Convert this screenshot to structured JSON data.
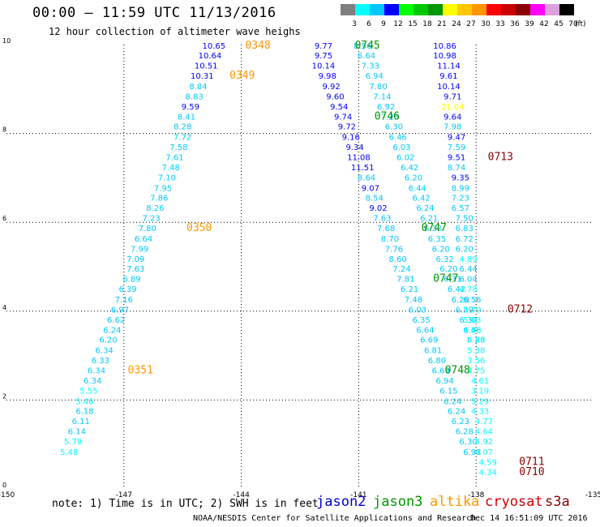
{
  "header": {
    "title": "00:00 – 11:59 UTC 11/13/2016",
    "subtitle": "12 hour collection of altimeter wave heighs"
  },
  "colorbar": {
    "bins": [
      {
        "label": "3",
        "color": "#7f7f7f"
      },
      {
        "label": "6",
        "color": "#00ffff"
      },
      {
        "label": "9",
        "color": "#00c8ff"
      },
      {
        "label": "12",
        "color": "#0000ff"
      },
      {
        "label": "15",
        "color": "#00ff00"
      },
      {
        "label": "18",
        "color": "#00c800"
      },
      {
        "label": "21",
        "color": "#009600"
      },
      {
        "label": "24",
        "color": "#ffff00"
      },
      {
        "label": "27",
        "color": "#ffc800"
      },
      {
        "label": "30",
        "color": "#ff9600"
      },
      {
        "label": "33",
        "color": "#ff0000"
      },
      {
        "label": "36",
        "color": "#c80000"
      },
      {
        "label": "39",
        "color": "#8b0000"
      },
      {
        "label": "42",
        "color": "#ff00ff"
      },
      {
        "label": "45",
        "color": "#dca0dc"
      },
      {
        "label": "70",
        "color": "#000000"
      }
    ],
    "unit": "(ft)"
  },
  "footer": {
    "note": "note: 1) Time is in UTC; 2) SWH is in feet",
    "credit": "NOAA/NESDIS Center for Satellite Applications and Research",
    "timestamp": "Dec 14 16:51:09 UTC 2016"
  },
  "satellites": [
    {
      "name": "jason2",
      "color": "#0000cc"
    },
    {
      "name": "jason3",
      "color": "#009600"
    },
    {
      "name": "altika",
      "color": "#ff9600"
    },
    {
      "name": "cryosat",
      "color": "#cc0000"
    },
    {
      "name": "s3a",
      "color": "#8b0000"
    }
  ],
  "chart_data": {
    "type": "scatter",
    "xlim": [
      -150,
      -135
    ],
    "ylim": [
      0,
      10
    ],
    "x_ticks": [
      "-150",
      "-147",
      "-144",
      "-141",
      "-138",
      "-135"
    ],
    "y_ticks": [
      "0",
      "2",
      "4",
      "6",
      "8",
      "10"
    ],
    "grid": true,
    "series": [
      {
        "name": "altika",
        "points": [
          {
            "x": -144.7,
            "y": 9.91,
            "v": "10.65"
          },
          {
            "x": -144.8,
            "y": 9.69,
            "v": "10.64"
          },
          {
            "x": -144.9,
            "y": 9.46,
            "v": "10.51"
          },
          {
            "x": -145.0,
            "y": 9.23,
            "v": "10.31"
          },
          {
            "x": -145.1,
            "y": 9.0,
            "v": "8.84"
          },
          {
            "x": -145.2,
            "y": 8.77,
            "v": "8.83"
          },
          {
            "x": -145.3,
            "y": 8.54,
            "v": "9.59"
          },
          {
            "x": -145.4,
            "y": 8.31,
            "v": "8.41"
          },
          {
            "x": -145.5,
            "y": 8.09,
            "v": "8.28"
          },
          {
            "x": -145.5,
            "y": 7.86,
            "v": "7.72"
          },
          {
            "x": -145.6,
            "y": 7.63,
            "v": "7.58"
          },
          {
            "x": -145.7,
            "y": 7.4,
            "v": "7.61"
          },
          {
            "x": -145.8,
            "y": 7.17,
            "v": "7.48"
          },
          {
            "x": -145.9,
            "y": 6.94,
            "v": "7.10"
          },
          {
            "x": -146.0,
            "y": 6.71,
            "v": "7.95"
          },
          {
            "x": -146.1,
            "y": 6.49,
            "v": "7.86"
          },
          {
            "x": -146.2,
            "y": 6.26,
            "v": "8.26"
          },
          {
            "x": -146.3,
            "y": 6.03,
            "v": "7.23"
          },
          {
            "x": -146.4,
            "y": 5.8,
            "v": "7.80"
          },
          {
            "x": -146.5,
            "y": 5.57,
            "v": "6.64"
          },
          {
            "x": -146.6,
            "y": 5.34,
            "v": "7.99"
          },
          {
            "x": -146.7,
            "y": 5.11,
            "v": "7.09"
          },
          {
            "x": -146.7,
            "y": 4.89,
            "v": "7.63"
          },
          {
            "x": -146.8,
            "y": 4.66,
            "v": "6.89"
          },
          {
            "x": -146.9,
            "y": 4.43,
            "v": "6.39"
          },
          {
            "x": -147.0,
            "y": 4.2,
            "v": "7.16"
          },
          {
            "x": -147.1,
            "y": 3.97,
            "v": "6.97"
          },
          {
            "x": -147.2,
            "y": 3.74,
            "v": "6.62"
          },
          {
            "x": -147.3,
            "y": 3.51,
            "v": "6.24"
          },
          {
            "x": -147.4,
            "y": 3.29,
            "v": "6.20"
          },
          {
            "x": -147.5,
            "y": 3.06,
            "v": "6.34"
          },
          {
            "x": -147.6,
            "y": 2.83,
            "v": "6.33"
          },
          {
            "x": -147.7,
            "y": 2.6,
            "v": "6.34"
          },
          {
            "x": -147.8,
            "y": 2.37,
            "v": "6.34"
          },
          {
            "x": -147.9,
            "y": 2.14,
            "v": "5.55"
          },
          {
            "x": -148.0,
            "y": 1.91,
            "v": "5.46"
          },
          {
            "x": -148.0,
            "y": 1.69,
            "v": "6.18"
          },
          {
            "x": -148.1,
            "y": 1.46,
            "v": "6.11"
          },
          {
            "x": -148.2,
            "y": 1.23,
            "v": "6.14"
          },
          {
            "x": -148.3,
            "y": 1.0,
            "v": "5.79"
          },
          {
            "x": -148.4,
            "y": 0.77,
            "v": "5.48"
          }
        ]
      },
      {
        "name": "jason3",
        "points": [
          {
            "x": -141.9,
            "y": 9.91,
            "v": "9.77"
          },
          {
            "x": -141.9,
            "y": 9.69,
            "v": "9.75"
          },
          {
            "x": -141.9,
            "y": 9.46,
            "v": "10.14"
          },
          {
            "x": -141.8,
            "y": 9.23,
            "v": "9.98"
          },
          {
            "x": -141.7,
            "y": 9.0,
            "v": "9.92"
          },
          {
            "x": -141.6,
            "y": 8.77,
            "v": "9.60"
          },
          {
            "x": -141.5,
            "y": 8.54,
            "v": "9.54"
          },
          {
            "x": -141.4,
            "y": 8.31,
            "v": "9.74"
          },
          {
            "x": -141.3,
            "y": 8.09,
            "v": "9.72"
          },
          {
            "x": -141.2,
            "y": 7.86,
            "v": "9.16"
          },
          {
            "x": -141.1,
            "y": 7.63,
            "v": "9.34"
          },
          {
            "x": -141.0,
            "y": 7.4,
            "v": "11.08"
          },
          {
            "x": -140.9,
            "y": 7.17,
            "v": "11.51"
          },
          {
            "x": -140.8,
            "y": 6.94,
            "v": "8.64"
          },
          {
            "x": -140.7,
            "y": 6.71,
            "v": "9.07"
          },
          {
            "x": -140.6,
            "y": 6.49,
            "v": "8.54"
          },
          {
            "x": -140.5,
            "y": 6.26,
            "v": "9.02"
          },
          {
            "x": -140.4,
            "y": 6.03,
            "v": "7.63"
          },
          {
            "x": -140.3,
            "y": 5.8,
            "v": "7.68"
          },
          {
            "x": -140.2,
            "y": 5.57,
            "v": "8.70"
          },
          {
            "x": -140.1,
            "y": 5.34,
            "v": "7.76"
          },
          {
            "x": -140.0,
            "y": 5.11,
            "v": "8.60"
          },
          {
            "x": -139.9,
            "y": 4.89,
            "v": "7.24"
          },
          {
            "x": -139.8,
            "y": 4.66,
            "v": "7.81"
          },
          {
            "x": -139.7,
            "y": 4.43,
            "v": "6.21"
          },
          {
            "x": -139.6,
            "y": 4.2,
            "v": "7.48"
          },
          {
            "x": -139.5,
            "y": 3.97,
            "v": "6.03"
          },
          {
            "x": -139.4,
            "y": 3.74,
            "v": "6.35"
          },
          {
            "x": -139.3,
            "y": 3.51,
            "v": "6.64"
          },
          {
            "x": -139.2,
            "y": 3.29,
            "v": "6.69"
          },
          {
            "x": -139.1,
            "y": 3.06,
            "v": "6.81"
          },
          {
            "x": -139.0,
            "y": 2.83,
            "v": "6.80"
          },
          {
            "x": -138.9,
            "y": 2.6,
            "v": "6.69"
          },
          {
            "x": -138.8,
            "y": 2.37,
            "v": "6.94"
          },
          {
            "x": -138.7,
            "y": 2.14,
            "v": "6.15"
          },
          {
            "x": -138.6,
            "y": 1.91,
            "v": "6.24"
          },
          {
            "x": -138.5,
            "y": 1.69,
            "v": "6.24"
          },
          {
            "x": -138.4,
            "y": 1.46,
            "v": "6.23"
          },
          {
            "x": -138.3,
            "y": 1.23,
            "v": "6.28"
          },
          {
            "x": -138.2,
            "y": 1.0,
            "v": "6.30"
          },
          {
            "x": -138.1,
            "y": 0.77,
            "v": "6.93"
          }
        ]
      },
      {
        "name": "jason2",
        "points": [
          {
            "x": -140.9,
            "y": 9.91,
            "v": "8.56"
          },
          {
            "x": -140.8,
            "y": 9.69,
            "v": "6.64"
          },
          {
            "x": -140.7,
            "y": 9.46,
            "v": "7.33"
          },
          {
            "x": -140.6,
            "y": 9.23,
            "v": "6.94"
          },
          {
            "x": -140.5,
            "y": 9.0,
            "v": "7.80"
          },
          {
            "x": -140.4,
            "y": 8.77,
            "v": "7.14"
          },
          {
            "x": -140.3,
            "y": 8.54,
            "v": "6.92"
          },
          {
            "x": -140.2,
            "y": 8.31,
            "v": "7.23"
          },
          {
            "x": -140.1,
            "y": 8.09,
            "v": "6.30"
          },
          {
            "x": -140.0,
            "y": 7.86,
            "v": "6.46"
          },
          {
            "x": -139.9,
            "y": 7.63,
            "v": "6.03"
          },
          {
            "x": -139.8,
            "y": 7.4,
            "v": "6.02"
          },
          {
            "x": -139.7,
            "y": 7.17,
            "v": "6.42"
          },
          {
            "x": -139.6,
            "y": 6.94,
            "v": "6.20"
          },
          {
            "x": -139.5,
            "y": 6.71,
            "v": "6.44"
          },
          {
            "x": -139.4,
            "y": 6.49,
            "v": "6.42"
          },
          {
            "x": -139.3,
            "y": 6.26,
            "v": "6.24"
          },
          {
            "x": -139.2,
            "y": 6.03,
            "v": "6.21"
          },
          {
            "x": -139.1,
            "y": 5.8,
            "v": "6.30"
          },
          {
            "x": -139.0,
            "y": 5.57,
            "v": "6.35"
          },
          {
            "x": -138.9,
            "y": 5.34,
            "v": "6.20"
          },
          {
            "x": -138.8,
            "y": 5.11,
            "v": "6.32"
          },
          {
            "x": -138.7,
            "y": 4.89,
            "v": "6.20"
          },
          {
            "x": -138.6,
            "y": 4.66,
            "v": "6.31"
          },
          {
            "x": -138.5,
            "y": 4.43,
            "v": "6.42"
          },
          {
            "x": -138.4,
            "y": 4.2,
            "v": "6.28"
          },
          {
            "x": -138.3,
            "y": 3.97,
            "v": "6.29"
          },
          {
            "x": -138.2,
            "y": 3.74,
            "v": "6.30"
          },
          {
            "x": -138.1,
            "y": 3.51,
            "v": "6.46"
          },
          {
            "x": -138.0,
            "y": 3.29,
            "v": "6.23"
          }
        ]
      },
      {
        "name": "cryosat",
        "points": [
          {
            "x": -138.8,
            "y": 9.91,
            "v": "10.86"
          },
          {
            "x": -138.8,
            "y": 9.69,
            "v": "10.98"
          },
          {
            "x": -138.7,
            "y": 9.46,
            "v": "11.14"
          },
          {
            "x": -138.7,
            "y": 9.23,
            "v": "9.61"
          },
          {
            "x": -138.7,
            "y": 9.0,
            "v": "10.14"
          },
          {
            "x": -138.6,
            "y": 8.77,
            "v": "9.71"
          },
          {
            "x": -138.6,
            "y": 8.54,
            "v": "21.04"
          },
          {
            "x": -138.6,
            "y": 8.31,
            "v": "9.64"
          },
          {
            "x": -138.6,
            "y": 8.09,
            "v": "7.98"
          },
          {
            "x": -138.5,
            "y": 7.86,
            "v": "9.47"
          },
          {
            "x": -138.5,
            "y": 7.63,
            "v": "7.59"
          },
          {
            "x": -138.5,
            "y": 7.4,
            "v": "9.51"
          },
          {
            "x": -138.5,
            "y": 7.17,
            "v": "8.74"
          },
          {
            "x": -138.4,
            "y": 6.94,
            "v": "9.35"
          },
          {
            "x": -138.4,
            "y": 6.71,
            "v": "8.99"
          },
          {
            "x": -138.4,
            "y": 6.49,
            "v": "7.23"
          },
          {
            "x": -138.4,
            "y": 6.26,
            "v": "6.57"
          },
          {
            "x": -138.3,
            "y": 6.03,
            "v": "7.50"
          },
          {
            "x": -138.3,
            "y": 5.8,
            "v": "6.83"
          },
          {
            "x": -138.3,
            "y": 5.57,
            "v": "6.72"
          },
          {
            "x": -138.3,
            "y": 5.34,
            "v": "6.20"
          },
          {
            "x": -138.2,
            "y": 5.11,
            "v": "4.89"
          },
          {
            "x": -138.2,
            "y": 4.89,
            "v": "6.44"
          },
          {
            "x": -138.2,
            "y": 4.66,
            "v": "6.04"
          },
          {
            "x": -138.2,
            "y": 4.43,
            "v": "4.78"
          },
          {
            "x": -138.1,
            "y": 4.2,
            "v": "6.56"
          },
          {
            "x": -138.1,
            "y": 3.97,
            "v": "5.79"
          },
          {
            "x": -138.1,
            "y": 3.74,
            "v": "5.03"
          },
          {
            "x": -138.1,
            "y": 3.51,
            "v": "4.88"
          },
          {
            "x": -138.0,
            "y": 3.29,
            "v": "5.86"
          },
          {
            "x": -138.0,
            "y": 3.06,
            "v": "5.38"
          },
          {
            "x": -138.0,
            "y": 2.83,
            "v": "3.56"
          },
          {
            "x": -138.0,
            "y": 2.6,
            "v": "4.75"
          },
          {
            "x": -137.9,
            "y": 2.37,
            "v": "4.61"
          },
          {
            "x": -137.9,
            "y": 2.14,
            "v": "3.19"
          },
          {
            "x": -137.9,
            "y": 1.91,
            "v": "5.29"
          },
          {
            "x": -137.9,
            "y": 1.69,
            "v": "4.33"
          },
          {
            "x": -137.8,
            "y": 1.46,
            "v": "4.77"
          },
          {
            "x": -137.8,
            "y": 1.23,
            "v": "4.64"
          },
          {
            "x": -137.8,
            "y": 1.0,
            "v": "5.92"
          },
          {
            "x": -137.8,
            "y": 0.77,
            "v": "4.07"
          },
          {
            "x": -137.7,
            "y": 0.54,
            "v": "4.59"
          },
          {
            "x": -137.7,
            "y": 0.31,
            "v": "4.34"
          }
        ]
      }
    ],
    "time_labels": [
      {
        "text": "0348",
        "x": -143.9,
        "y": 9.91,
        "color": "#ff9600"
      },
      {
        "text": "0349",
        "x": -144.3,
        "y": 9.23,
        "color": "#ff9600"
      },
      {
        "text": "0350",
        "x": -145.4,
        "y": 5.8,
        "color": "#ff9600"
      },
      {
        "text": "0351",
        "x": -146.9,
        "y": 2.6,
        "color": "#ff9600"
      },
      {
        "text": "0745",
        "x": -141.1,
        "y": 9.91,
        "color": "#009600"
      },
      {
        "text": "0746",
        "x": -140.6,
        "y": 8.31,
        "color": "#009600"
      },
      {
        "text": "0747",
        "x": -139.4,
        "y": 5.8,
        "color": "#009600"
      },
      {
        "text": "0747",
        "x": -139.1,
        "y": 4.66,
        "color": "#009600"
      },
      {
        "text": "0748",
        "x": -138.8,
        "y": 2.6,
        "color": "#009600"
      },
      {
        "text": "0713",
        "x": -137.7,
        "y": 7.4,
        "color": "#8b0000"
      },
      {
        "text": "0712",
        "x": -137.2,
        "y": 3.97,
        "color": "#8b0000"
      },
      {
        "text": "0711",
        "x": -136.9,
        "y": 0.54,
        "color": "#8b0000"
      },
      {
        "text": "0710",
        "x": -136.9,
        "y": 0.31,
        "color": "#8b0000"
      }
    ]
  }
}
